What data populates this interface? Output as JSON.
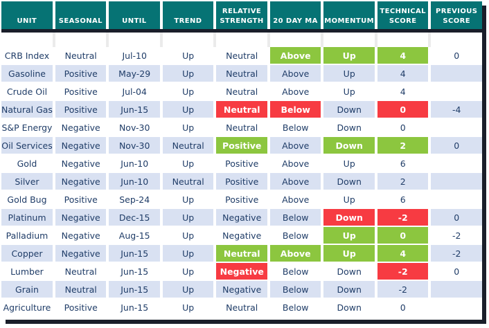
{
  "colors": {
    "header_bg": "#067374",
    "header_text": "#ffffff",
    "positive_highlight": "#8cc63f",
    "negative_highlight": "#f73b42",
    "row_stripe": "#d9e1f2",
    "data_text": "#1f3c67",
    "frame_shadow": "#1a1e2a"
  },
  "chart_data": {
    "type": "table",
    "columns": [
      {
        "key": "unit",
        "label": "UNIT"
      },
      {
        "key": "seasonal",
        "label": "SEASONAL"
      },
      {
        "key": "until",
        "label": "UNTIL"
      },
      {
        "key": "trend",
        "label": "TREND"
      },
      {
        "key": "relative_strength",
        "label": "RELATIVE STRENGTH"
      },
      {
        "key": "ma_20day",
        "label": "20 DAY MA"
      },
      {
        "key": "momentum",
        "label": "MOMENTUM"
      },
      {
        "key": "technical_score",
        "label": "TECHNICAL SCORE"
      },
      {
        "key": "previous_score",
        "label": "PREVIOUS SCORE"
      }
    ],
    "rows": [
      {
        "cells": [
          {
            "v": "CRB Index"
          },
          {
            "v": "Neutral"
          },
          {
            "v": "Jul-10"
          },
          {
            "v": "Up"
          },
          {
            "v": "Neutral"
          },
          {
            "v": "Above",
            "h": "green"
          },
          {
            "v": "Up",
            "h": "green"
          },
          {
            "v": "4",
            "h": "green"
          },
          {
            "v": "0"
          }
        ]
      },
      {
        "cells": [
          {
            "v": "Gasoline"
          },
          {
            "v": "Positive"
          },
          {
            "v": "May-29"
          },
          {
            "v": "Up"
          },
          {
            "v": "Neutral"
          },
          {
            "v": "Above"
          },
          {
            "v": "Up"
          },
          {
            "v": "4"
          },
          {
            "v": ""
          }
        ]
      },
      {
        "cells": [
          {
            "v": "Crude Oil"
          },
          {
            "v": "Positive"
          },
          {
            "v": "Jul-04"
          },
          {
            "v": "Up"
          },
          {
            "v": "Neutral"
          },
          {
            "v": "Above"
          },
          {
            "v": "Up"
          },
          {
            "v": "4"
          },
          {
            "v": ""
          }
        ]
      },
      {
        "cells": [
          {
            "v": "Natural Gas"
          },
          {
            "v": "Positive"
          },
          {
            "v": "Jun-15"
          },
          {
            "v": "Up"
          },
          {
            "v": "Neutral",
            "h": "red"
          },
          {
            "v": "Below",
            "h": "red"
          },
          {
            "v": "Down"
          },
          {
            "v": "0",
            "h": "red"
          },
          {
            "v": "-4"
          }
        ]
      },
      {
        "cells": [
          {
            "v": "S&P Energy"
          },
          {
            "v": "Negative"
          },
          {
            "v": "Nov-30"
          },
          {
            "v": "Up"
          },
          {
            "v": "Neutral"
          },
          {
            "v": "Below"
          },
          {
            "v": "Down"
          },
          {
            "v": "0"
          },
          {
            "v": ""
          }
        ]
      },
      {
        "cells": [
          {
            "v": "Oil Services"
          },
          {
            "v": "Negative"
          },
          {
            "v": "Nov-30"
          },
          {
            "v": "Neutral"
          },
          {
            "v": "Positive",
            "h": "green"
          },
          {
            "v": "Above"
          },
          {
            "v": "Down",
            "h": "green"
          },
          {
            "v": "2",
            "h": "green"
          },
          {
            "v": "0"
          }
        ]
      },
      {
        "cells": [
          {
            "v": "Gold"
          },
          {
            "v": "Negative"
          },
          {
            "v": "Jun-10"
          },
          {
            "v": "Up"
          },
          {
            "v": "Positive"
          },
          {
            "v": "Above"
          },
          {
            "v": "Up"
          },
          {
            "v": "6"
          },
          {
            "v": ""
          }
        ]
      },
      {
        "cells": [
          {
            "v": "Silver"
          },
          {
            "v": "Negative"
          },
          {
            "v": "Jun-10"
          },
          {
            "v": "Neutral"
          },
          {
            "v": "Positive"
          },
          {
            "v": "Above"
          },
          {
            "v": "Down"
          },
          {
            "v": "2"
          },
          {
            "v": ""
          }
        ]
      },
      {
        "cells": [
          {
            "v": "Gold Bug"
          },
          {
            "v": "Positive"
          },
          {
            "v": "Sep-24"
          },
          {
            "v": "Up"
          },
          {
            "v": "Positive"
          },
          {
            "v": "Above"
          },
          {
            "v": "Up"
          },
          {
            "v": "6"
          },
          {
            "v": ""
          }
        ]
      },
      {
        "cells": [
          {
            "v": "Platinum"
          },
          {
            "v": "Negative"
          },
          {
            "v": "Dec-15"
          },
          {
            "v": "Up"
          },
          {
            "v": "Negative"
          },
          {
            "v": "Below"
          },
          {
            "v": "Down",
            "h": "red"
          },
          {
            "v": "-2",
            "h": "red"
          },
          {
            "v": "0"
          }
        ]
      },
      {
        "cells": [
          {
            "v": "Palladium"
          },
          {
            "v": "Negative"
          },
          {
            "v": "Aug-15"
          },
          {
            "v": "Up"
          },
          {
            "v": "Negative"
          },
          {
            "v": "Below"
          },
          {
            "v": "Up",
            "h": "green"
          },
          {
            "v": "0",
            "h": "green"
          },
          {
            "v": "-2"
          }
        ]
      },
      {
        "cells": [
          {
            "v": "Copper"
          },
          {
            "v": "Negative"
          },
          {
            "v": "Jun-15"
          },
          {
            "v": "Up"
          },
          {
            "v": "Neutral",
            "h": "green"
          },
          {
            "v": "Above",
            "h": "green"
          },
          {
            "v": "Up",
            "h": "green"
          },
          {
            "v": "4",
            "h": "green"
          },
          {
            "v": "-2"
          }
        ]
      },
      {
        "cells": [
          {
            "v": "Lumber"
          },
          {
            "v": "Neutral"
          },
          {
            "v": "Jun-15"
          },
          {
            "v": "Up"
          },
          {
            "v": "Negative",
            "h": "red"
          },
          {
            "v": "Below"
          },
          {
            "v": "Down"
          },
          {
            "v": "-2",
            "h": "red"
          },
          {
            "v": "0"
          }
        ]
      },
      {
        "cells": [
          {
            "v": "Grain"
          },
          {
            "v": "Neutral"
          },
          {
            "v": "Jun-15"
          },
          {
            "v": "Up"
          },
          {
            "v": "Negative"
          },
          {
            "v": "Below"
          },
          {
            "v": "Down"
          },
          {
            "v": "-2"
          },
          {
            "v": ""
          }
        ]
      },
      {
        "cells": [
          {
            "v": "Agriculture"
          },
          {
            "v": "Positive"
          },
          {
            "v": "Jun-15"
          },
          {
            "v": "Up"
          },
          {
            "v": "Neutral"
          },
          {
            "v": "Below"
          },
          {
            "v": "Down"
          },
          {
            "v": "0"
          },
          {
            "v": ""
          }
        ]
      }
    ]
  }
}
